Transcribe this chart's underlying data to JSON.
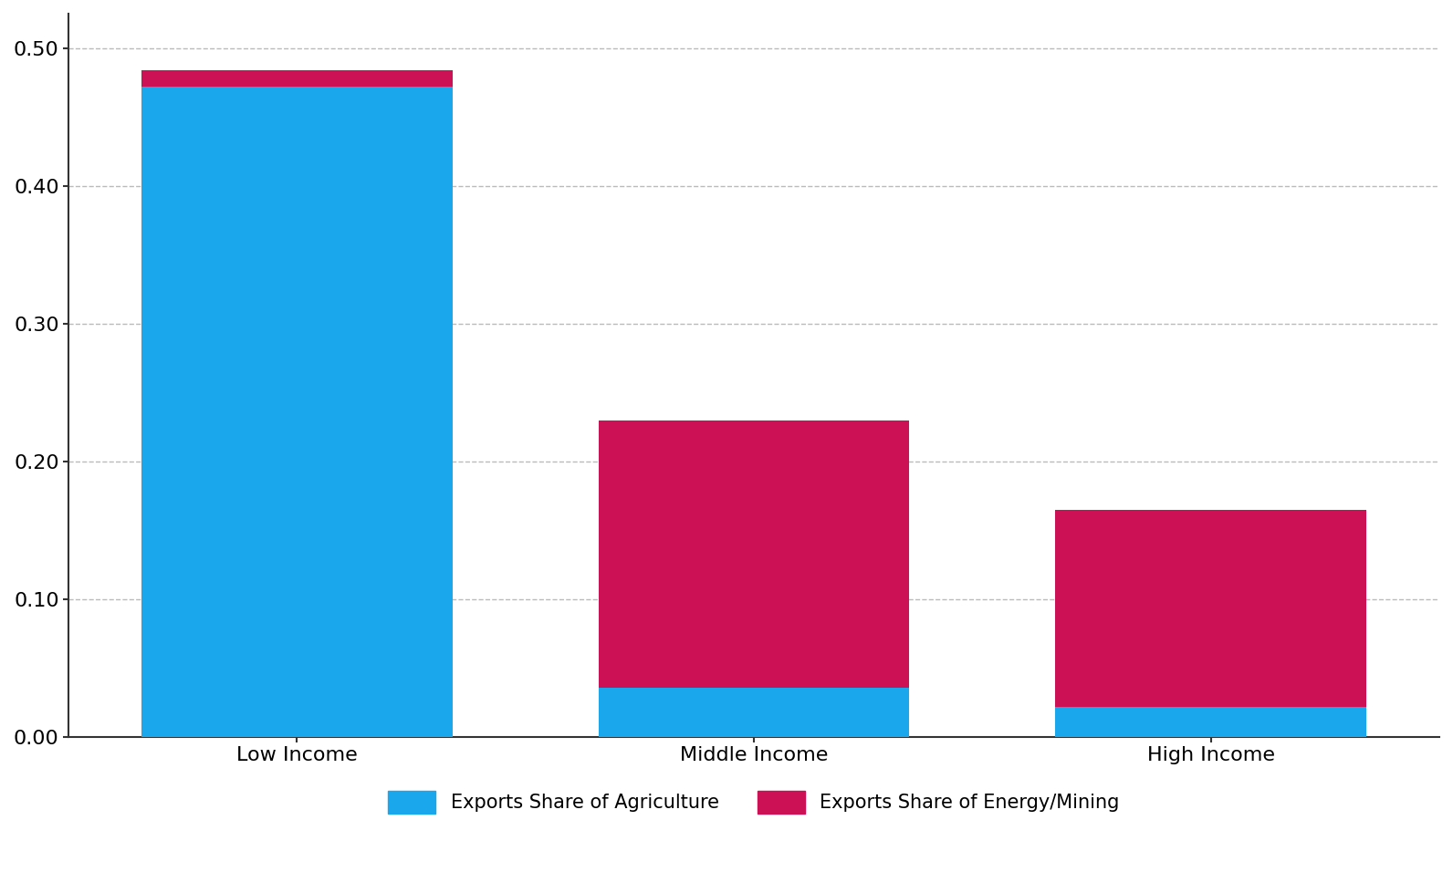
{
  "categories": [
    "Low Income",
    "Middle Income",
    "High Income"
  ],
  "agriculture_values": [
    0.472,
    0.036,
    0.022
  ],
  "energy_mining_values": [
    0.012,
    0.194,
    0.143
  ],
  "color_agriculture": "#1AA7EC",
  "color_energy_mining": "#CC1154",
  "ylim": [
    0,
    0.525
  ],
  "yticks": [
    0.0,
    0.1,
    0.2,
    0.3,
    0.4,
    0.5
  ],
  "legend_agriculture": "Exports Share of Agriculture",
  "legend_energy_mining": "Exports Share of Energy/Mining",
  "background_color": "#FFFFFF",
  "grid_color": "#BBBBBB",
  "bar_width": 0.68,
  "tick_fontsize": 16,
  "legend_fontsize": 15
}
